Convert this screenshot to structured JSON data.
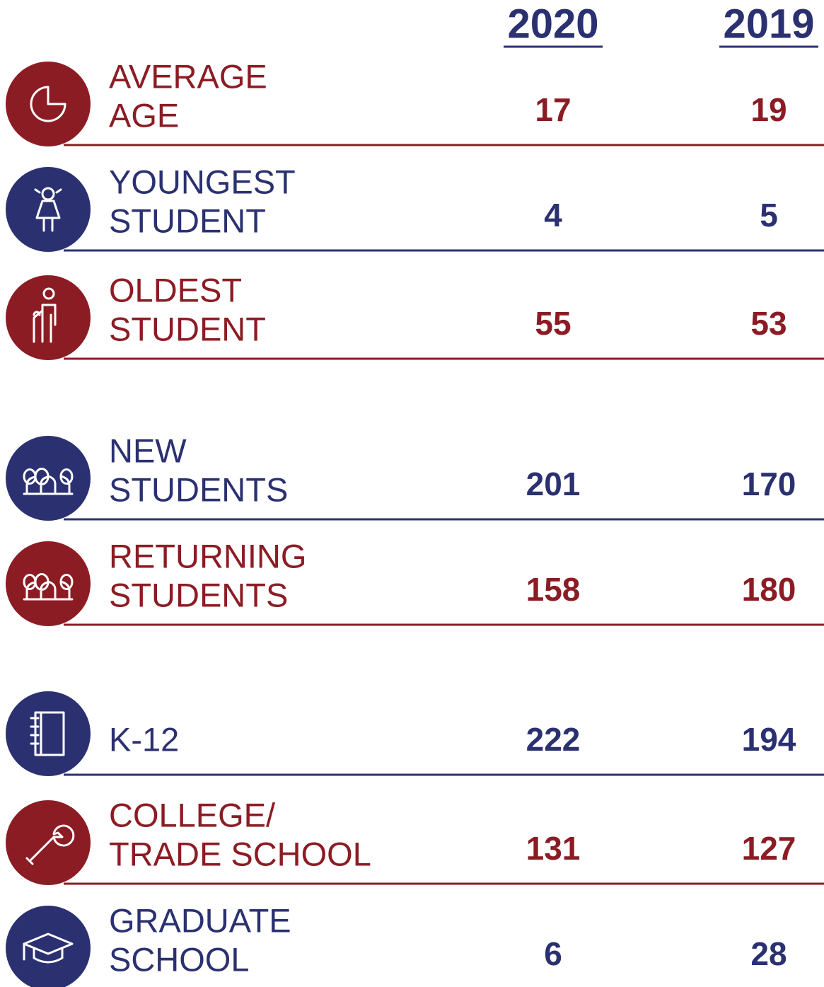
{
  "header": {
    "columns": [
      "2020",
      "2019"
    ]
  },
  "rows": [
    {
      "label": [
        "AVERAGE",
        "AGE"
      ],
      "values": [
        17,
        19
      ],
      "color": "#8c1c24"
    },
    {
      "label": [
        "YOUNGEST",
        "STUDENT"
      ],
      "values": [
        4,
        5
      ],
      "color": "#2b3170"
    },
    {
      "label": [
        "OLDEST",
        "STUDENT"
      ],
      "values": [
        55,
        53
      ],
      "color": "#8c1c24"
    },
    {
      "label": [
        "NEW",
        "STUDENTS"
      ],
      "values": [
        201,
        170
      ],
      "color": "#2b3170"
    },
    {
      "label": [
        "RETURNING",
        "STUDENTS"
      ],
      "values": [
        158,
        180
      ],
      "color": "#8c1c24"
    },
    {
      "label": [
        "K-12"
      ],
      "values": [
        222,
        194
      ],
      "color": "#2b3170"
    },
    {
      "label": [
        "COLLEGE/",
        "TRADE SCHOOL"
      ],
      "values": [
        131,
        127
      ],
      "color": "#8c1c24"
    },
    {
      "label": [
        "GRADUATE",
        "SCHOOL"
      ],
      "values": [
        6,
        28
      ],
      "color": "#2b3170"
    }
  ]
}
